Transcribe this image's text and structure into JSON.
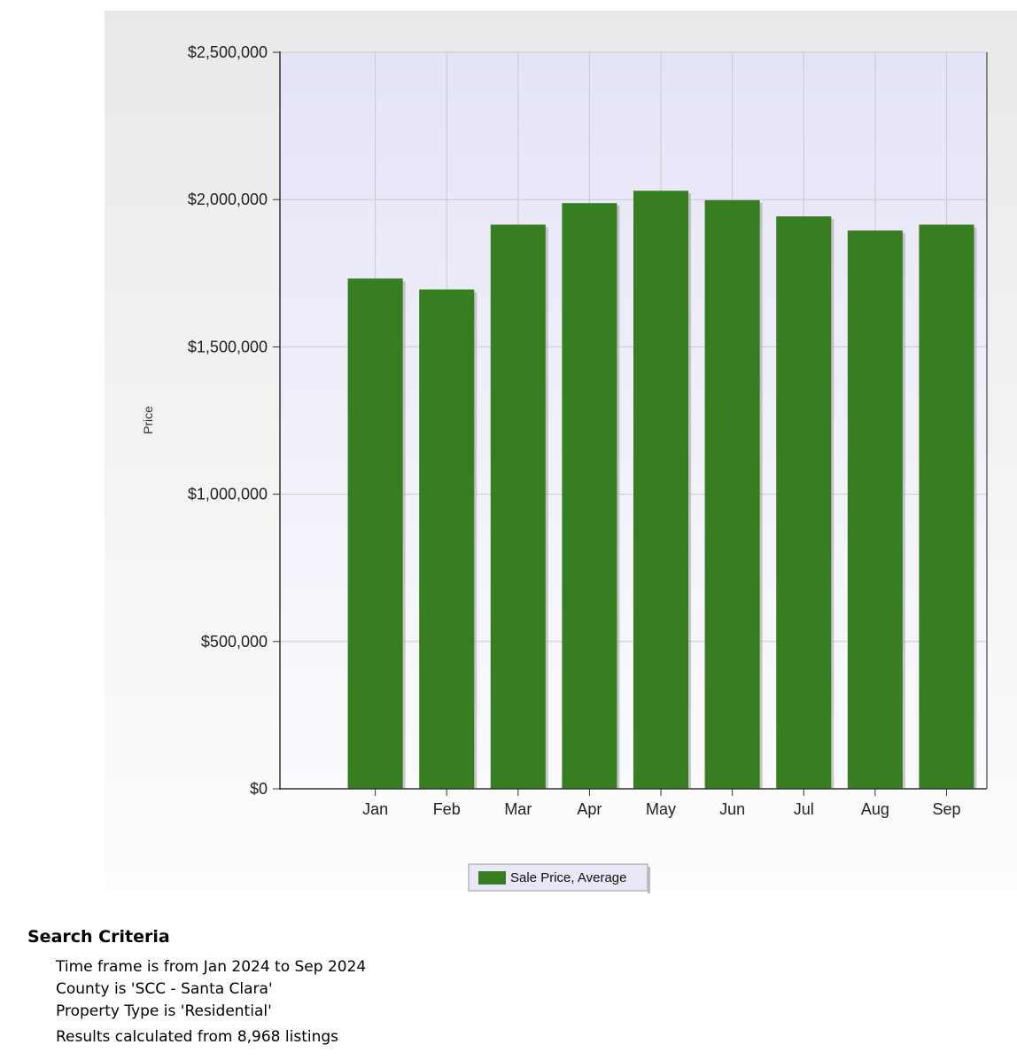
{
  "chart_data": {
    "type": "bar",
    "categories": [
      "Jan",
      "Feb",
      "Mar",
      "Apr",
      "May",
      "Jun",
      "Jul",
      "Aug",
      "Sep"
    ],
    "series": [
      {
        "name": "Sale Price, Average",
        "color": "#377d22",
        "values": [
          1732000,
          1695000,
          1915000,
          1988000,
          2030000,
          1998000,
          1943000,
          1895000,
          1915000
        ]
      }
    ],
    "ylabel": "Price",
    "ylim": [
      0,
      2500000
    ],
    "yticks": [
      0,
      500000,
      1000000,
      1500000,
      2000000,
      2500000
    ],
    "ytick_labels": [
      "$0",
      "$500,000",
      "$1,000,000",
      "$1,500,000",
      "$2,000,000",
      "$2,500,000"
    ],
    "grid": true,
    "legend_position": "bottom-center",
    "plot_background": "#e8e8f8"
  },
  "criteria": {
    "title": "Search Criteria",
    "lines": [
      "Time frame is from Jan 2024 to Sep 2024",
      "County is 'SCC - Santa Clara'",
      "Property Type is 'Residential'"
    ],
    "results": "Results calculated from 8,968 listings"
  }
}
